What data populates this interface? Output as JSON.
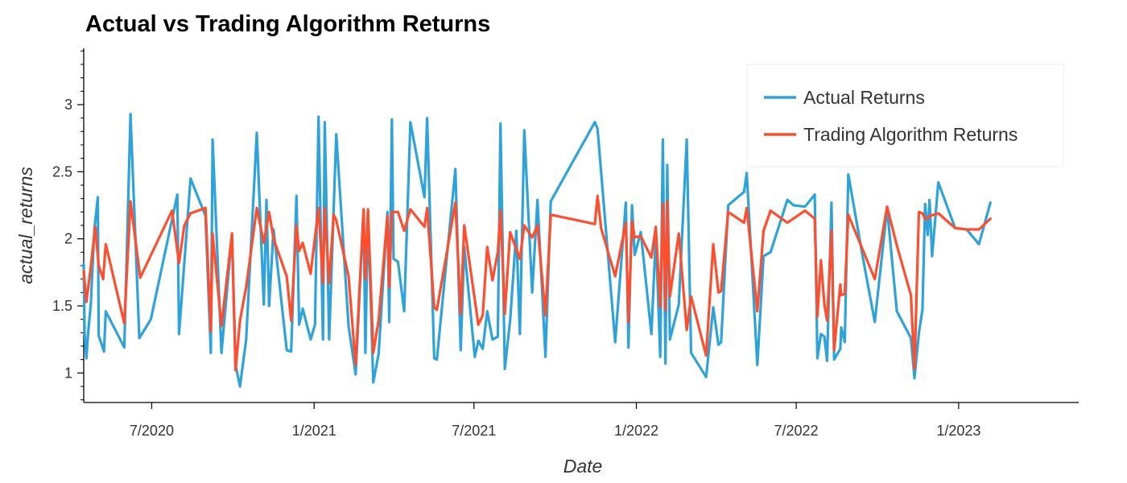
{
  "chart_data": {
    "type": "line",
    "title": "Actual vs Trading Algorithm Returns",
    "xlabel": "Date",
    "ylabel": "actual_returns",
    "x_range": [
      "2020-04-15",
      "2023-05-17"
    ],
    "ylim": [
      0.78,
      3.42
    ],
    "x_ticks": [
      {
        "date": "2020-07-01",
        "label": "7/2020"
      },
      {
        "date": "2021-01-01",
        "label": "1/2021"
      },
      {
        "date": "2021-07-01",
        "label": "7/2021"
      },
      {
        "date": "2022-01-01",
        "label": "1/2022"
      },
      {
        "date": "2022-07-01",
        "label": "7/2022"
      },
      {
        "date": "2023-01-01",
        "label": "1/2023"
      }
    ],
    "y_ticks": [
      1,
      1.5,
      2,
      2.5,
      3
    ],
    "grid": false,
    "legend_position": "top-right",
    "series": [
      {
        "name": "Actual Returns",
        "color": "#30a2da",
        "points": [
          [
            "2020-04-15",
            1.81
          ],
          [
            "2020-04-16",
            1.3
          ],
          [
            "2020-04-18",
            1.11
          ],
          [
            "2020-04-20",
            1.3
          ],
          [
            "2020-04-23",
            1.51
          ],
          [
            "2020-04-27",
            2.07
          ],
          [
            "2020-05-01",
            2.31
          ],
          [
            "2020-05-02",
            1.28
          ],
          [
            "2020-05-08",
            1.16
          ],
          [
            "2020-05-10",
            1.46
          ],
          [
            "2020-05-31",
            1.19
          ],
          [
            "2020-06-07",
            2.93
          ],
          [
            "2020-06-17",
            1.26
          ],
          [
            "2020-06-30",
            1.4
          ],
          [
            "2020-07-30",
            2.33
          ],
          [
            "2020-08-01",
            1.29
          ],
          [
            "2020-08-14",
            2.45
          ],
          [
            "2020-08-31",
            2.17
          ],
          [
            "2020-09-06",
            1.15
          ],
          [
            "2020-09-08",
            2.74
          ],
          [
            "2020-09-18",
            1.15
          ],
          [
            "2020-09-30",
            2.03
          ],
          [
            "2020-10-04",
            1.06
          ],
          [
            "2020-10-09",
            0.9
          ],
          [
            "2020-10-16",
            1.25
          ],
          [
            "2020-10-28",
            2.79
          ],
          [
            "2020-11-05",
            1.51
          ],
          [
            "2020-11-08",
            2.29
          ],
          [
            "2020-11-11",
            1.5
          ],
          [
            "2020-11-16",
            2.07
          ],
          [
            "2020-12-01",
            1.17
          ],
          [
            "2020-12-06",
            1.16
          ],
          [
            "2020-12-12",
            2.32
          ],
          [
            "2020-12-15",
            1.36
          ],
          [
            "2020-12-19",
            1.48
          ],
          [
            "2020-12-28",
            1.25
          ],
          [
            "2021-01-02",
            1.36
          ],
          [
            "2021-01-06",
            2.91
          ],
          [
            "2021-01-11",
            1.25
          ],
          [
            "2021-01-13",
            2.87
          ],
          [
            "2021-01-18",
            1.25
          ],
          [
            "2021-01-26",
            2.78
          ],
          [
            "2021-02-09",
            1.35
          ],
          [
            "2021-02-17",
            0.99
          ],
          [
            "2021-02-26",
            2.21
          ],
          [
            "2021-02-28",
            1.15
          ],
          [
            "2021-03-03",
            2.21
          ],
          [
            "2021-03-09",
            0.93
          ],
          [
            "2021-03-15",
            1.14
          ],
          [
            "2021-03-25",
            2.2
          ],
          [
            "2021-03-27",
            1.38
          ],
          [
            "2021-03-30",
            2.89
          ],
          [
            "2021-04-01",
            1.85
          ],
          [
            "2021-04-06",
            1.83
          ],
          [
            "2021-04-13",
            1.46
          ],
          [
            "2021-04-20",
            2.87
          ],
          [
            "2021-05-06",
            2.31
          ],
          [
            "2021-05-09",
            2.9
          ],
          [
            "2021-05-17",
            1.11
          ],
          [
            "2021-05-20",
            1.1
          ],
          [
            "2021-06-10",
            2.52
          ],
          [
            "2021-06-16",
            1.17
          ],
          [
            "2021-06-20",
            1.94
          ],
          [
            "2021-07-02",
            1.12
          ],
          [
            "2021-07-06",
            1.24
          ],
          [
            "2021-07-11",
            1.18
          ],
          [
            "2021-07-16",
            1.46
          ],
          [
            "2021-07-22",
            1.25
          ],
          [
            "2021-07-28",
            1.27
          ],
          [
            "2021-07-31",
            2.86
          ],
          [
            "2021-08-05",
            1.03
          ],
          [
            "2021-08-11",
            1.39
          ],
          [
            "2021-08-18",
            2.06
          ],
          [
            "2021-08-22",
            1.29
          ],
          [
            "2021-08-27",
            2.81
          ],
          [
            "2021-09-05",
            1.6
          ],
          [
            "2021-09-11",
            2.29
          ],
          [
            "2021-09-20",
            1.12
          ],
          [
            "2021-09-26",
            2.28
          ],
          [
            "2021-11-15",
            2.87
          ],
          [
            "2021-11-18",
            2.82
          ],
          [
            "2021-12-08",
            1.23
          ],
          [
            "2021-12-20",
            2.27
          ],
          [
            "2021-12-23",
            1.19
          ],
          [
            "2021-12-27",
            2.25
          ],
          [
            "2021-12-30",
            1.88
          ],
          [
            "2022-01-06",
            2.05
          ],
          [
            "2022-01-18",
            1.29
          ],
          [
            "2022-01-23",
            2.03
          ],
          [
            "2022-01-28",
            1.12
          ],
          [
            "2022-01-31",
            2.74
          ],
          [
            "2022-02-03",
            1.07
          ],
          [
            "2022-02-05",
            2.55
          ],
          [
            "2022-02-08",
            1.25
          ],
          [
            "2022-02-18",
            1.51
          ],
          [
            "2022-02-27",
            2.74
          ],
          [
            "2022-03-04",
            1.15
          ],
          [
            "2022-03-21",
            0.97
          ],
          [
            "2022-03-29",
            1.49
          ],
          [
            "2022-04-04",
            1.21
          ],
          [
            "2022-04-07",
            1.23
          ],
          [
            "2022-04-15",
            2.25
          ],
          [
            "2022-05-03",
            2.35
          ],
          [
            "2022-05-06",
            2.49
          ],
          [
            "2022-05-18",
            1.06
          ],
          [
            "2022-05-25",
            1.87
          ],
          [
            "2022-06-02",
            1.9
          ],
          [
            "2022-06-21",
            2.29
          ],
          [
            "2022-06-28",
            2.25
          ],
          [
            "2022-07-11",
            2.24
          ],
          [
            "2022-07-22",
            2.33
          ],
          [
            "2022-07-25",
            1.11
          ],
          [
            "2022-07-29",
            1.29
          ],
          [
            "2022-08-02",
            1.27
          ],
          [
            "2022-08-05",
            1.09
          ],
          [
            "2022-08-10",
            2.27
          ],
          [
            "2022-08-13",
            1.1
          ],
          [
            "2022-08-20",
            1.18
          ],
          [
            "2022-08-21",
            1.34
          ],
          [
            "2022-08-25",
            1.23
          ],
          [
            "2022-08-29",
            2.48
          ],
          [
            "2022-09-14",
            1.88
          ],
          [
            "2022-09-28",
            1.38
          ],
          [
            "2022-10-12",
            2.23
          ],
          [
            "2022-10-23",
            1.46
          ],
          [
            "2022-11-08",
            1.26
          ],
          [
            "2022-11-12",
            0.96
          ],
          [
            "2022-11-17",
            1.3
          ],
          [
            "2022-11-21",
            1.47
          ],
          [
            "2022-11-24",
            2.26
          ],
          [
            "2022-11-27",
            2.03
          ],
          [
            "2022-11-29",
            2.29
          ],
          [
            "2022-12-02",
            1.87
          ],
          [
            "2022-12-09",
            2.42
          ],
          [
            "2022-12-28",
            2.08
          ],
          [
            "2023-01-10",
            2.07
          ],
          [
            "2023-01-24",
            1.96
          ],
          [
            "2023-02-06",
            2.27
          ]
        ]
      },
      {
        "name": "Trading Algorithm Returns",
        "color": "#fc4f30",
        "points": [
          [
            "2020-04-15",
            1.76
          ],
          [
            "2020-04-18",
            1.53
          ],
          [
            "2020-04-23",
            1.79
          ],
          [
            "2020-04-28",
            2.09
          ],
          [
            "2020-05-02",
            1.8
          ],
          [
            "2020-05-07",
            1.7
          ],
          [
            "2020-05-10",
            1.96
          ],
          [
            "2020-05-31",
            1.37
          ],
          [
            "2020-06-07",
            2.28
          ],
          [
            "2020-06-18",
            1.71
          ],
          [
            "2020-07-24",
            2.21
          ],
          [
            "2020-08-01",
            1.82
          ],
          [
            "2020-08-07",
            2.1
          ],
          [
            "2020-08-14",
            2.19
          ],
          [
            "2020-08-31",
            2.23
          ],
          [
            "2020-09-06",
            1.31
          ],
          [
            "2020-09-08",
            2.04
          ],
          [
            "2020-09-18",
            1.35
          ],
          [
            "2020-09-30",
            2.04
          ],
          [
            "2020-10-04",
            1.02
          ],
          [
            "2020-10-09",
            1.39
          ],
          [
            "2020-10-16",
            1.64
          ],
          [
            "2020-10-28",
            2.23
          ],
          [
            "2020-11-05",
            1.97
          ],
          [
            "2020-11-11",
            2.2
          ],
          [
            "2020-11-16",
            2.0
          ],
          [
            "2020-12-01",
            1.72
          ],
          [
            "2020-12-06",
            1.39
          ],
          [
            "2020-12-12",
            2.1
          ],
          [
            "2020-12-15",
            1.91
          ],
          [
            "2020-12-19",
            1.97
          ],
          [
            "2020-12-28",
            1.74
          ],
          [
            "2021-01-06",
            2.23
          ],
          [
            "2021-01-11",
            1.67
          ],
          [
            "2021-01-13",
            2.23
          ],
          [
            "2021-01-18",
            1.67
          ],
          [
            "2021-01-23",
            2.18
          ],
          [
            "2021-01-26",
            2.14
          ],
          [
            "2021-02-09",
            1.72
          ],
          [
            "2021-02-17",
            1.06
          ],
          [
            "2021-02-26",
            2.22
          ],
          [
            "2021-02-28",
            1.7
          ],
          [
            "2021-03-03",
            2.22
          ],
          [
            "2021-03-09",
            1.15
          ],
          [
            "2021-03-15",
            1.39
          ],
          [
            "2021-03-25",
            2.17
          ],
          [
            "2021-03-27",
            1.64
          ],
          [
            "2021-03-30",
            2.2
          ],
          [
            "2021-04-06",
            2.2
          ],
          [
            "2021-04-13",
            2.06
          ],
          [
            "2021-04-20",
            2.22
          ],
          [
            "2021-05-06",
            2.09
          ],
          [
            "2021-05-09",
            2.23
          ],
          [
            "2021-05-17",
            1.49
          ],
          [
            "2021-05-20",
            1.47
          ],
          [
            "2021-06-10",
            2.27
          ],
          [
            "2021-06-16",
            1.44
          ],
          [
            "2021-06-20",
            2.1
          ],
          [
            "2021-07-06",
            1.36
          ],
          [
            "2021-07-11",
            1.43
          ],
          [
            "2021-07-16",
            1.94
          ],
          [
            "2021-07-22",
            1.69
          ],
          [
            "2021-07-28",
            1.9
          ],
          [
            "2021-07-31",
            2.21
          ],
          [
            "2021-08-05",
            1.44
          ],
          [
            "2021-08-11",
            2.05
          ],
          [
            "2021-08-22",
            1.85
          ],
          [
            "2021-08-27",
            2.1
          ],
          [
            "2021-09-05",
            2.01
          ],
          [
            "2021-09-11",
            2.1
          ],
          [
            "2021-09-20",
            1.43
          ],
          [
            "2021-09-26",
            2.18
          ],
          [
            "2021-11-15",
            2.11
          ],
          [
            "2021-11-18",
            2.32
          ],
          [
            "2021-11-22",
            2.08
          ],
          [
            "2021-12-08",
            1.72
          ],
          [
            "2021-12-20",
            2.12
          ],
          [
            "2021-12-23",
            1.38
          ],
          [
            "2021-12-27",
            2.13
          ],
          [
            "2021-12-30",
            2.01
          ],
          [
            "2022-01-06",
            2.02
          ],
          [
            "2022-01-18",
            1.86
          ],
          [
            "2022-01-23",
            2.09
          ],
          [
            "2022-01-28",
            1.49
          ],
          [
            "2022-01-31",
            2.26
          ],
          [
            "2022-02-03",
            1.47
          ],
          [
            "2022-02-05",
            2.28
          ],
          [
            "2022-02-08",
            1.57
          ],
          [
            "2022-02-18",
            2.04
          ],
          [
            "2022-02-27",
            1.32
          ],
          [
            "2022-03-04",
            1.57
          ],
          [
            "2022-03-21",
            1.13
          ],
          [
            "2022-03-29",
            1.96
          ],
          [
            "2022-04-04",
            1.6
          ],
          [
            "2022-04-07",
            1.61
          ],
          [
            "2022-04-15",
            2.2
          ],
          [
            "2022-05-03",
            2.12
          ],
          [
            "2022-05-06",
            2.23
          ],
          [
            "2022-05-18",
            1.46
          ],
          [
            "2022-05-25",
            2.06
          ],
          [
            "2022-06-02",
            2.21
          ],
          [
            "2022-06-21",
            2.12
          ],
          [
            "2022-07-11",
            2.21
          ],
          [
            "2022-07-22",
            2.15
          ],
          [
            "2022-07-25",
            1.42
          ],
          [
            "2022-07-29",
            1.84
          ],
          [
            "2022-08-02",
            1.51
          ],
          [
            "2022-08-05",
            1.39
          ],
          [
            "2022-08-10",
            2.06
          ],
          [
            "2022-08-13",
            1.17
          ],
          [
            "2022-08-20",
            1.66
          ],
          [
            "2022-08-21",
            1.58
          ],
          [
            "2022-08-25",
            1.59
          ],
          [
            "2022-08-29",
            2.18
          ],
          [
            "2022-09-28",
            1.7
          ],
          [
            "2022-10-12",
            2.24
          ],
          [
            "2022-10-23",
            1.95
          ],
          [
            "2022-11-08",
            1.58
          ],
          [
            "2022-11-12",
            1.03
          ],
          [
            "2022-11-17",
            2.2
          ],
          [
            "2022-11-21",
            2.19
          ],
          [
            "2022-11-24",
            2.15
          ],
          [
            "2022-11-27",
            2.15
          ],
          [
            "2022-11-29",
            2.17
          ],
          [
            "2022-12-09",
            2.19
          ],
          [
            "2022-12-28",
            2.08
          ],
          [
            "2023-01-10",
            2.07
          ],
          [
            "2023-01-24",
            2.07
          ],
          [
            "2023-02-06",
            2.15
          ]
        ]
      }
    ]
  }
}
